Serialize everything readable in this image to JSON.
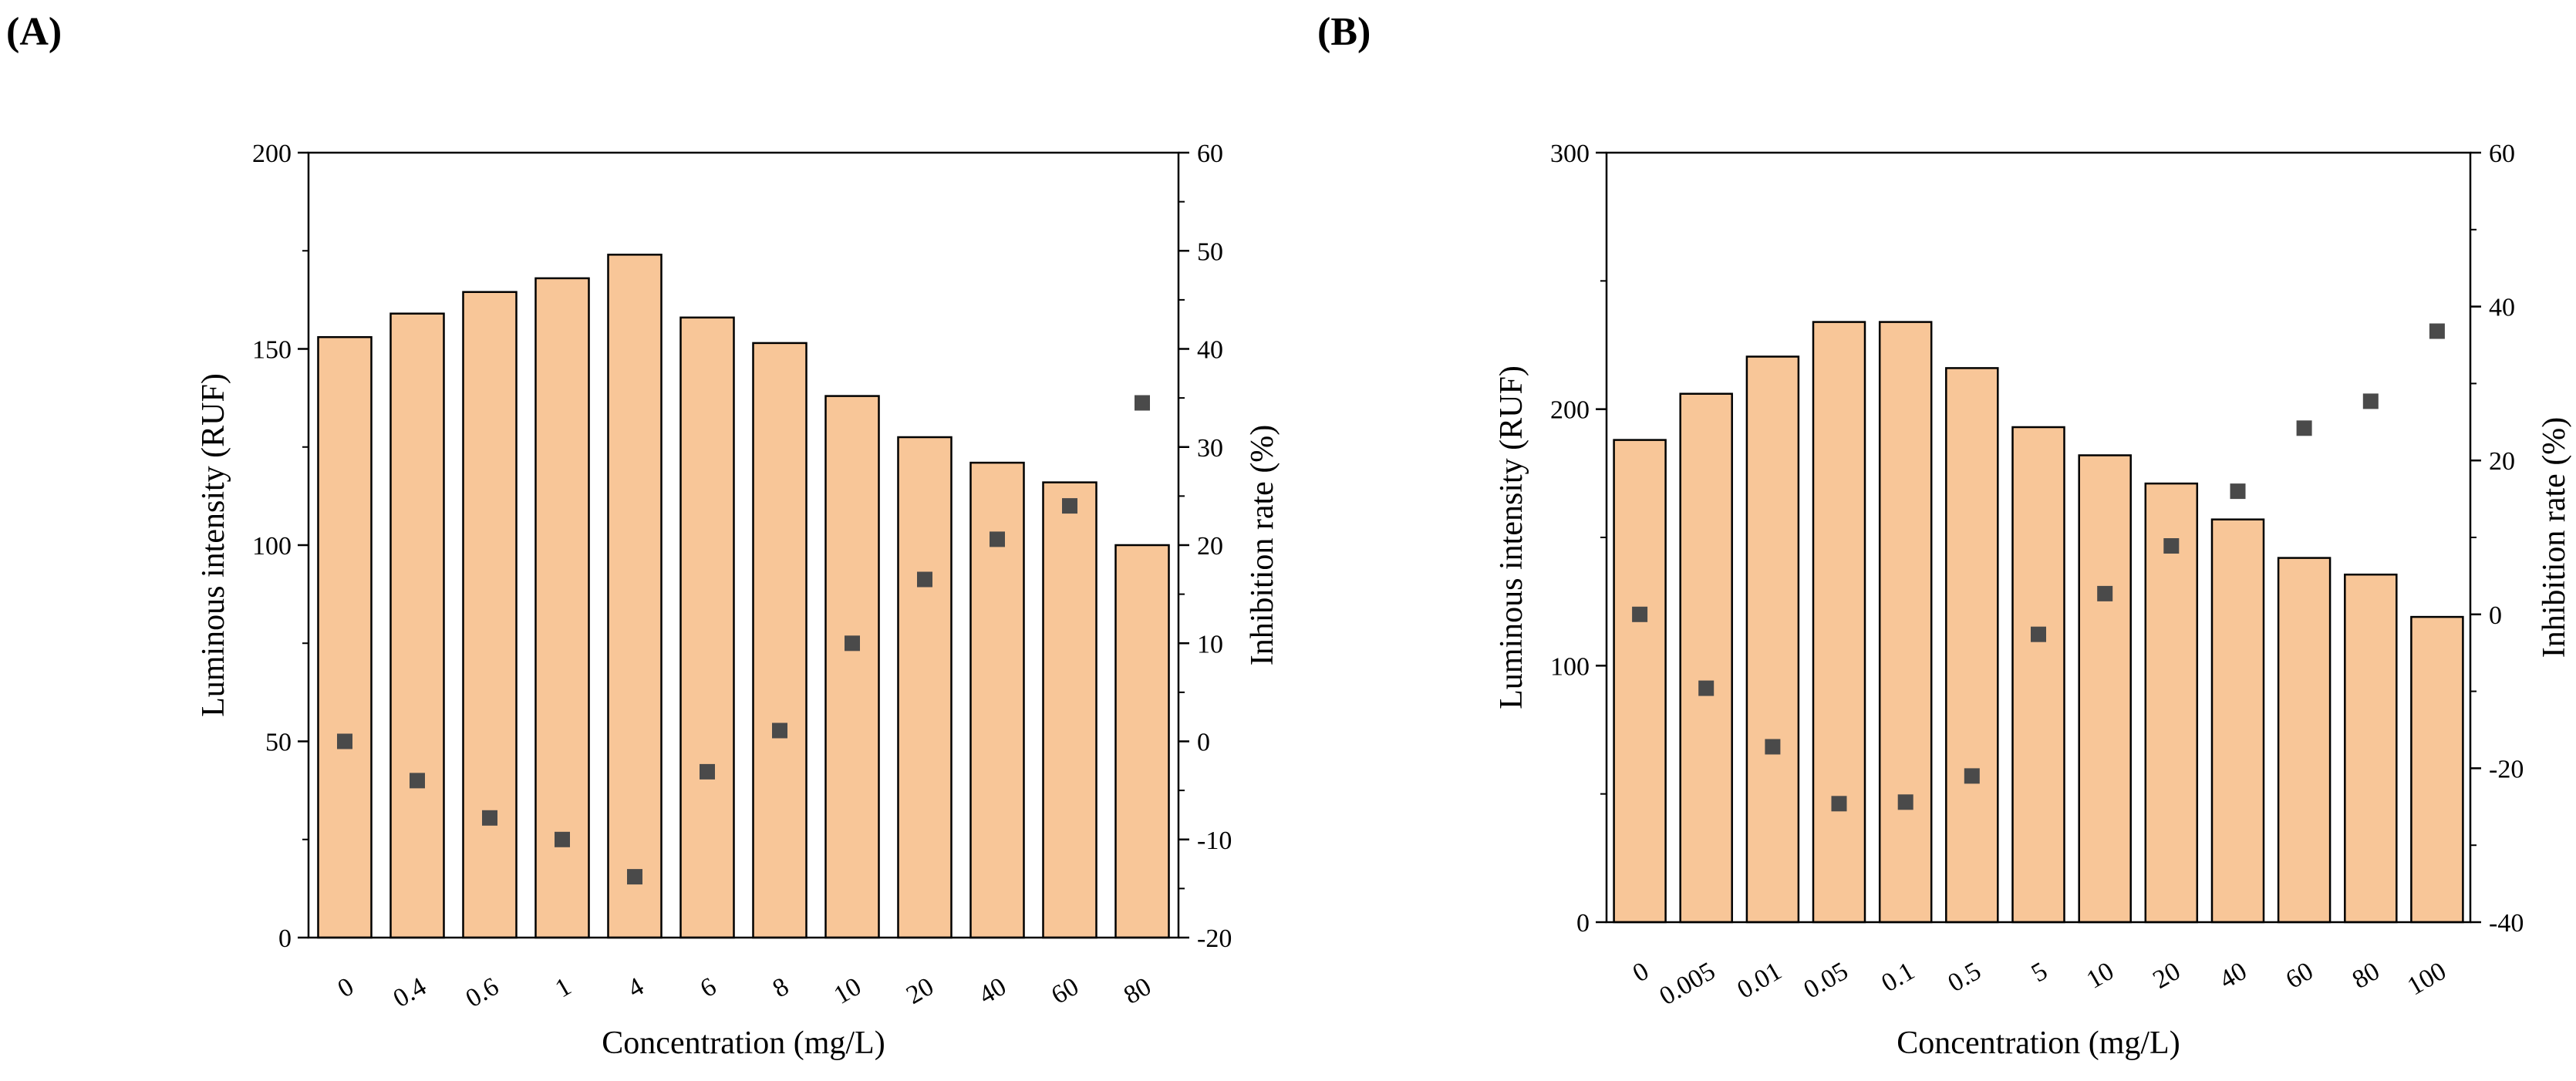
{
  "colors": {
    "bar_fill": "#F8C698",
    "bar_stroke": "#000000",
    "marker": "#4a4a4a"
  },
  "chart_data": [
    {
      "type": "bar",
      "panel_label": "(A)",
      "categories": [
        "0",
        "0.4",
        "0.6",
        "1",
        "4",
        "6",
        "8",
        "10",
        "20",
        "40",
        "60",
        "80"
      ],
      "series": [
        {
          "name": "Luminous intensity",
          "kind": "bar",
          "axis": "left",
          "values": [
            153,
            159,
            164.5,
            168,
            174,
            158,
            151.5,
            138,
            127.5,
            121,
            116,
            100
          ]
        },
        {
          "name": "Inhibition rate",
          "kind": "scatter",
          "axis": "right",
          "marker": "square",
          "values": [
            0,
            -4,
            -7.8,
            -10,
            -13.8,
            -3.1,
            1.1,
            10,
            16.5,
            20.6,
            24,
            34.5
          ]
        }
      ],
      "xlabel": "Concentration (mg/L)",
      "ylabel": "Luminous intensity (RUF)",
      "y2label": "Inhibition rate (%)",
      "ylim": [
        0,
        200
      ],
      "yticks": [
        0,
        50,
        100,
        150,
        200
      ],
      "y2lim": [
        -20,
        60
      ],
      "y2ticks": [
        -20,
        -10,
        0,
        10,
        20,
        30,
        40,
        50,
        60
      ],
      "grid": false
    },
    {
      "type": "bar",
      "panel_label": "(B)",
      "categories": [
        "0",
        "0.005",
        "0.01",
        "0.05",
        "0.1",
        "0.5",
        "5",
        "10",
        "20",
        "40",
        "60",
        "80",
        "100"
      ],
      "series": [
        {
          "name": "Luminous intensity",
          "kind": "bar",
          "axis": "left",
          "values": [
            188,
            206,
            220.5,
            234,
            234,
            216,
            193,
            182,
            171,
            157,
            142,
            135.5,
            119
          ]
        },
        {
          "name": "Inhibition rate",
          "kind": "scatter",
          "axis": "right",
          "marker": "square",
          "values": [
            0,
            -9.6,
            -17.2,
            -24.6,
            -24.4,
            -21,
            -2.6,
            2.7,
            8.9,
            16,
            24.2,
            27.7,
            36.8
          ]
        }
      ],
      "xlabel": "Concentration (mg/L)",
      "ylabel": "Luminous intensity (RUF)",
      "y2label": "Inhibition rate (%)",
      "ylim": [
        0,
        300
      ],
      "yticks": [
        0,
        100,
        200,
        300
      ],
      "y2lim": [
        -40,
        60
      ],
      "y2ticks": [
        -40,
        -20,
        0,
        20,
        40,
        60
      ],
      "grid": false
    }
  ]
}
